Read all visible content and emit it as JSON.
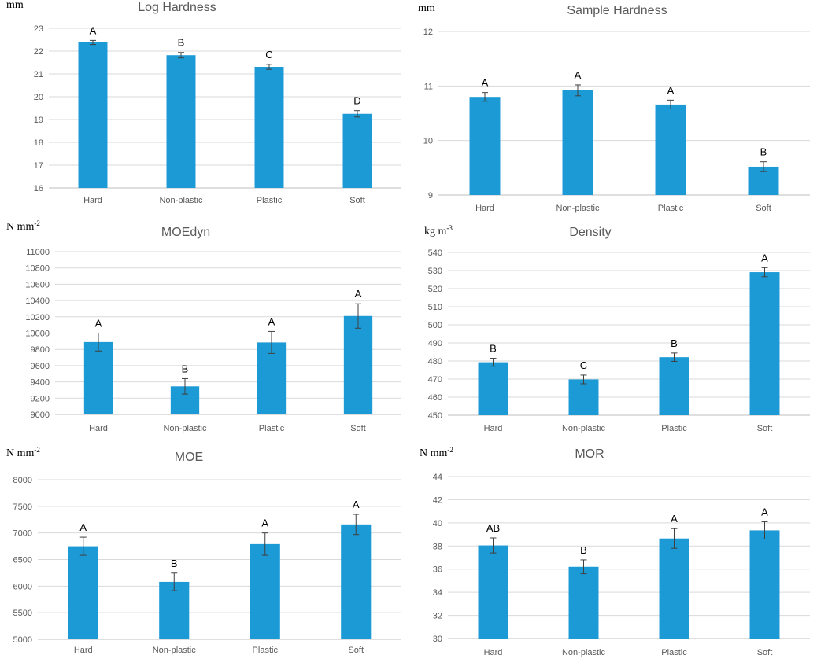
{
  "bar_color": "#1b9ad6",
  "chart_data": [
    {
      "type": "bar",
      "title": "Log Hardness",
      "ylabel": "mm",
      "categories": [
        "Hard",
        "Non-plastic",
        "Plastic",
        "Soft"
      ],
      "values": [
        22.38,
        21.82,
        21.31,
        19.25
      ],
      "errors": [
        0.09,
        0.12,
        0.11,
        0.14
      ],
      "letters": [
        "A",
        "B",
        "C",
        "D"
      ],
      "ylim": [
        16,
        23
      ],
      "yticks": [
        16,
        17,
        18,
        19,
        20,
        21,
        22,
        23
      ]
    },
    {
      "type": "bar",
      "title": "Sample Hardness",
      "ylabel": "mm",
      "categories": [
        "Hard",
        "Non-plastic",
        "Plastic",
        "Soft"
      ],
      "values": [
        10.8,
        10.92,
        10.66,
        9.52
      ],
      "errors": [
        0.08,
        0.1,
        0.08,
        0.09
      ],
      "letters": [
        "A",
        "A",
        "A",
        "B"
      ],
      "ylim": [
        9,
        12
      ],
      "yticks": [
        9,
        10,
        11,
        12
      ]
    },
    {
      "type": "bar",
      "title": "MOEdyn",
      "ylabel": "N mm",
      "ylabel_sup": "-2",
      "categories": [
        "Hard",
        "Non-plastic",
        "Plastic",
        "Soft"
      ],
      "values": [
        9890,
        9345,
        9885,
        10210
      ],
      "errors": [
        110,
        95,
        135,
        150
      ],
      "letters": [
        "A",
        "B",
        "A",
        "A"
      ],
      "ylim": [
        9000,
        11000
      ],
      "yticks": [
        9000,
        9200,
        9400,
        9600,
        9800,
        10000,
        10200,
        10400,
        10600,
        10800,
        11000
      ]
    },
    {
      "type": "bar",
      "title": "Density",
      "ylabel": "kg m",
      "ylabel_sup": "-3",
      "categories": [
        "Hard",
        "Non-plastic",
        "Plastic",
        "Soft"
      ],
      "values": [
        479.3,
        469.8,
        482.1,
        529.1
      ],
      "errors": [
        2.2,
        2.4,
        2.3,
        2.5
      ],
      "letters": [
        "B",
        "C",
        "B",
        "A"
      ],
      "ylim": [
        450,
        540
      ],
      "yticks": [
        450,
        460,
        470,
        480,
        490,
        500,
        510,
        520,
        530,
        540
      ]
    },
    {
      "type": "bar",
      "title": "MOE",
      "ylabel": "N mm",
      "ylabel_sup": "-2",
      "categories": [
        "Hard",
        "Non-plastic",
        "Plastic",
        "Soft"
      ],
      "values": [
        6750,
        6080,
        6790,
        7160
      ],
      "errors": [
        170,
        165,
        210,
        190
      ],
      "letters": [
        "A",
        "B",
        "A",
        "A"
      ],
      "ylim": [
        5000,
        8000
      ],
      "yticks": [
        5000,
        5500,
        6000,
        6500,
        7000,
        7500,
        8000
      ]
    },
    {
      "type": "bar",
      "title": "MOR",
      "ylabel": "N mm",
      "ylabel_sup": "-2",
      "categories": [
        "Hard",
        "Non-plastic",
        "Plastic",
        "Soft"
      ],
      "values": [
        38.05,
        36.2,
        38.65,
        39.35
      ],
      "errors": [
        0.65,
        0.6,
        0.85,
        0.75
      ],
      "letters": [
        "AB",
        "B",
        "A",
        "A"
      ],
      "ylim": [
        30,
        44
      ],
      "yticks": [
        30,
        32,
        34,
        36,
        38,
        40,
        42,
        44
      ]
    }
  ]
}
